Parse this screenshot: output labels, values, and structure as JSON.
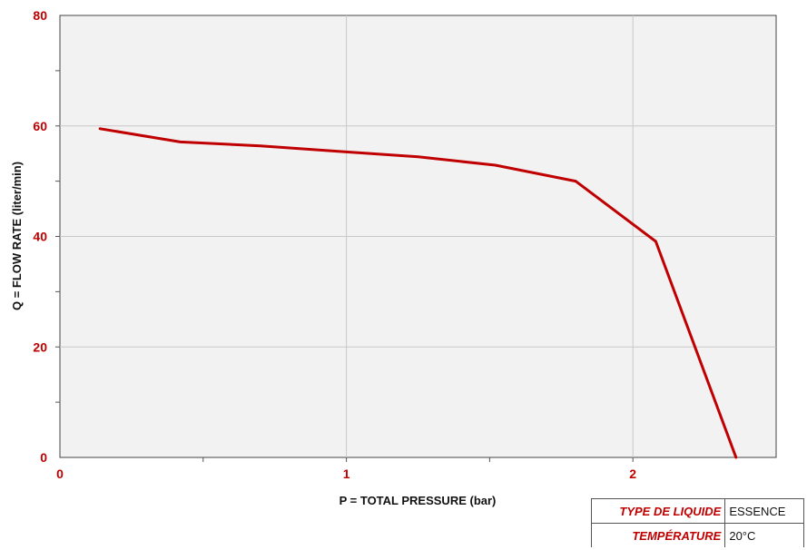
{
  "chart_data": {
    "type": "line",
    "title": "",
    "xlabel": "P = TOTAL PRESSURE (bar)",
    "ylabel": "Q = FLOW RATE (liter/min)",
    "xlim": [
      0,
      2.5
    ],
    "ylim": [
      0,
      80
    ],
    "x_ticks": [
      "0",
      "1",
      "2"
    ],
    "y_ticks": [
      "0",
      "20",
      "40",
      "60",
      "80"
    ],
    "grid": true,
    "series": [
      {
        "x": [
          0.14,
          0.42,
          0.7,
          1.0,
          1.25,
          1.52,
          1.8,
          2.08,
          2.36
        ],
        "y": [
          59.5,
          57.1,
          56.4,
          55.3,
          54.4,
          52.9,
          50.0,
          39.1,
          0.0
        ]
      }
    ],
    "colors": {
      "line": "#c00000",
      "tick_label": "#c00000",
      "plot_background": "#f2f2f2",
      "grid": "#c8c8c8"
    }
  },
  "info_table": {
    "rows": [
      {
        "key": "TYPE DE LIQUIDE",
        "value": "ESSENCE"
      },
      {
        "key": "TEMPÉRATURE",
        "value": "20°C"
      }
    ]
  }
}
